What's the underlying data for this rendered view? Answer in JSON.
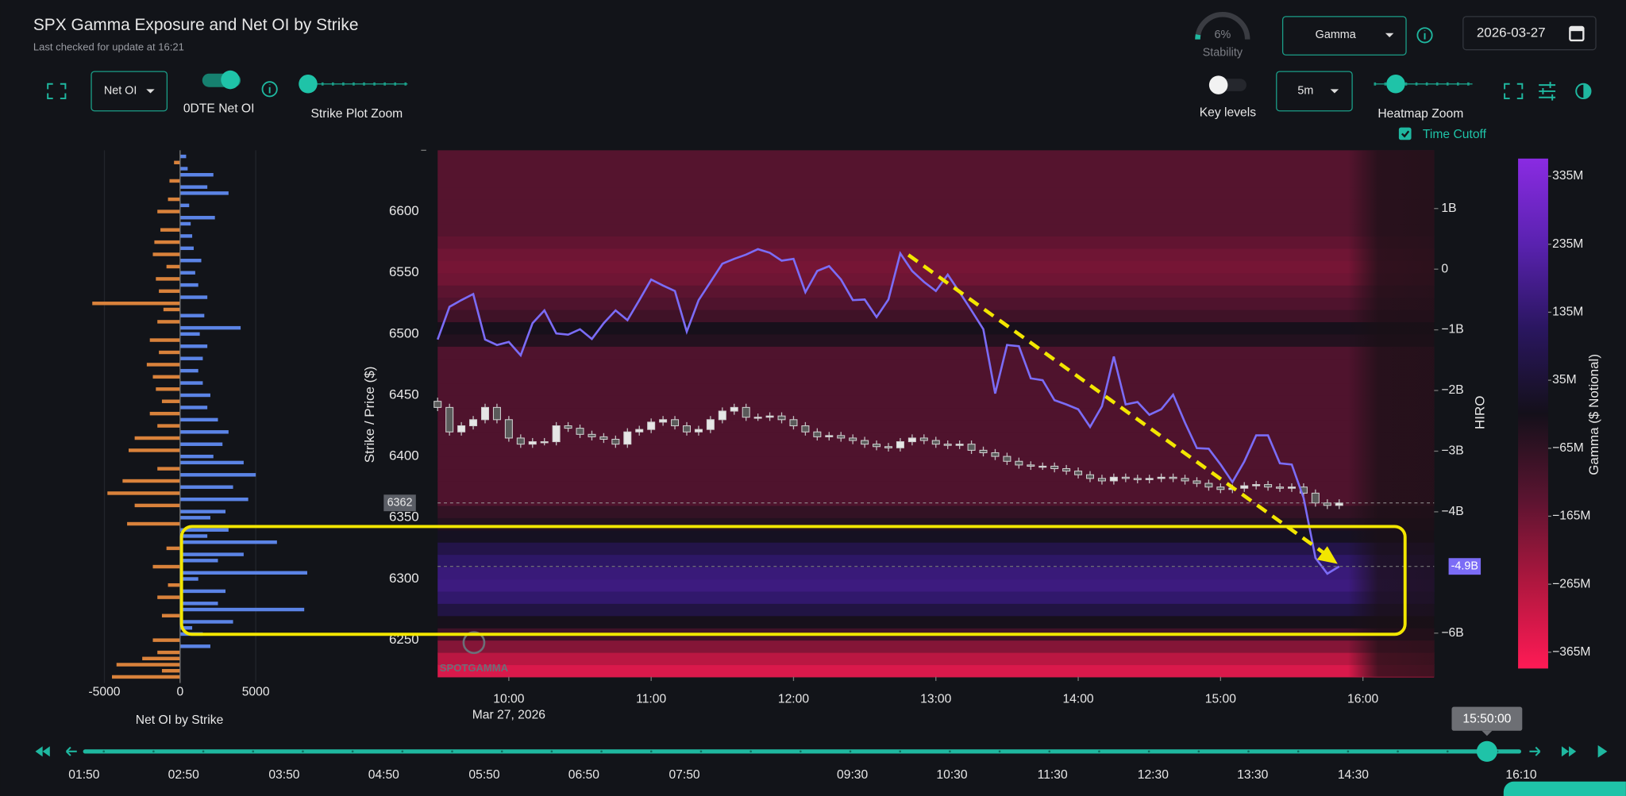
{
  "header": {
    "title": "SPX Gamma Exposure and Net OI by Strike",
    "subtitle": "Last checked for update at 16:21"
  },
  "controls": {
    "net_oi_select": "Net OI",
    "dte_label": "0DTE Net OI",
    "strike_zoom_label": "Strike Plot Zoom",
    "stability": {
      "value": 6,
      "value_label": "6%",
      "label": "Stability"
    },
    "mode_select": "Gamma",
    "date": "2026-03-27",
    "key_levels_label": "Key levels",
    "interval_select": "5m",
    "heatmap_zoom_label": "Heatmap Zoom",
    "time_cutoff_label": "Time Cutoff"
  },
  "chart_data": [
    {
      "type": "bar",
      "orientation": "horizontal",
      "x_label": "Net OI by Strike",
      "strikes": [
        6220,
        6225,
        6230,
        6235,
        6240,
        6245,
        6250,
        6255,
        6260,
        6265,
        6270,
        6275,
        6280,
        6285,
        6290,
        6295,
        6300,
        6305,
        6310,
        6315,
        6320,
        6325,
        6330,
        6335,
        6340,
        6345,
        6350,
        6355,
        6360,
        6365,
        6370,
        6375,
        6380,
        6385,
        6390,
        6395,
        6400,
        6405,
        6410,
        6415,
        6420,
        6425,
        6430,
        6435,
        6440,
        6445,
        6450,
        6455,
        6460,
        6465,
        6470,
        6475,
        6480,
        6485,
        6490,
        6495,
        6500,
        6505,
        6510,
        6515,
        6520,
        6525,
        6530,
        6535,
        6540,
        6545,
        6550,
        6555,
        6560,
        6565,
        6570,
        6575,
        6580,
        6585,
        6590,
        6595,
        6600,
        6605,
        6610,
        6615,
        6620,
        6625,
        6630,
        6635,
        6640,
        6645
      ],
      "values": [
        -4500,
        -1200,
        -4200,
        -2500,
        -1500,
        2000,
        -1800,
        1500,
        800,
        3500,
        -1200,
        8200,
        2500,
        -1500,
        3000,
        -800,
        1200,
        8400,
        -1800,
        2500,
        4200,
        -900,
        6400,
        1800,
        3200,
        -3500,
        2000,
        3000,
        -3000,
        4500,
        -4800,
        3500,
        -3800,
        5000,
        -1500,
        4200,
        2200,
        -3400,
        2800,
        -3000,
        3200,
        -1500,
        2500,
        -2000,
        1800,
        -1200,
        2000,
        -1600,
        1500,
        -1800,
        1200,
        -2200,
        1500,
        -1400,
        1800,
        -2000,
        1300,
        4000,
        -1500,
        1600,
        -1100,
        -5800,
        1800,
        -1400,
        1200,
        -1600,
        1000,
        -900,
        1400,
        -1800,
        900,
        -1700,
        800,
        -1300,
        700,
        2300,
        -1500,
        600,
        -800,
        3200,
        1800,
        -700,
        2200,
        500,
        -400,
        400
      ],
      "colors": {
        "positive": "#5b84e6",
        "negative": "#d9823b"
      },
      "xlim": [
        -6000,
        9000
      ],
      "xticks": [
        -5000,
        0,
        5000
      ],
      "ylim": [
        6215,
        6650
      ]
    },
    {
      "type": "candlestick",
      "y_label": "Strike / Price ($)",
      "y2_label": "HIRO",
      "date_label": "Mar 27, 2026",
      "watermark": "SPOTGAMMA",
      "x": [
        570,
        575,
        580,
        585,
        590,
        595,
        600,
        605,
        610,
        615,
        620,
        625,
        630,
        635,
        640,
        645,
        650,
        655,
        660,
        665,
        670,
        675,
        680,
        685,
        690,
        695,
        700,
        705,
        710,
        715,
        720,
        725,
        730,
        735,
        740,
        745,
        750,
        755,
        760,
        765,
        770,
        775,
        780,
        785,
        790,
        795,
        800,
        805,
        810,
        815,
        820,
        825,
        830,
        835,
        840,
        845,
        850,
        855,
        860,
        865,
        870,
        875,
        880,
        885,
        890,
        895,
        900,
        905,
        910,
        915,
        920,
        925,
        930,
        935,
        940,
        945,
        950
      ],
      "open": [
        6445,
        6440,
        6420,
        6425,
        6430,
        6440,
        6430,
        6415,
        6410,
        6412,
        6412,
        6425,
        6423,
        6418,
        6416,
        6414,
        6410,
        6420,
        6422,
        6428,
        6430,
        6425,
        6420,
        6422,
        6430,
        6437,
        6440,
        6432,
        6432,
        6433,
        6430,
        6425,
        6420,
        6416,
        6417,
        6415,
        6413,
        6410,
        6408,
        6407,
        6412,
        6415,
        6413,
        6410,
        6409,
        6410,
        6405,
        6403,
        6400,
        6396,
        6393,
        6392,
        6392,
        6390,
        6388,
        6385,
        6382,
        6380,
        6383,
        6382,
        6381,
        6382,
        6383,
        6382,
        6380,
        6378,
        6375,
        6373,
        6374,
        6376,
        6377,
        6375,
        6374,
        6375,
        6370,
        6362,
        6360
      ],
      "high": [
        6448,
        6443,
        6428,
        6433,
        6443,
        6443,
        6433,
        6418,
        6415,
        6415,
        6428,
        6428,
        6426,
        6421,
        6419,
        6417,
        6423,
        6425,
        6431,
        6433,
        6433,
        6428,
        6425,
        6433,
        6440,
        6443,
        6443,
        6435,
        6436,
        6436,
        6433,
        6428,
        6423,
        6420,
        6420,
        6418,
        6416,
        6413,
        6411,
        6415,
        6418,
        6418,
        6416,
        6413,
        6413,
        6413,
        6408,
        6406,
        6403,
        6399,
        6396,
        6395,
        6395,
        6393,
        6391,
        6388,
        6385,
        6386,
        6386,
        6385,
        6385,
        6386,
        6386,
        6385,
        6383,
        6381,
        6378,
        6377,
        6379,
        6380,
        6380,
        6378,
        6378,
        6378,
        6373,
        6365,
        6365
      ],
      "low": [
        6437,
        6417,
        6417,
        6422,
        6427,
        6427,
        6412,
        6407,
        6407,
        6409,
        6409,
        6420,
        6415,
        6413,
        6411,
        6407,
        6407,
        6417,
        6419,
        6425,
        6422,
        6417,
        6417,
        6419,
        6427,
        6434,
        6429,
        6429,
        6429,
        6427,
        6422,
        6417,
        6413,
        6413,
        6412,
        6410,
        6407,
        6405,
        6404,
        6404,
        6409,
        6410,
        6407,
        6406,
        6406,
        6402,
        6400,
        6397,
        6393,
        6390,
        6389,
        6389,
        6387,
        6385,
        6382,
        6379,
        6377,
        6377,
        6379,
        6378,
        6378,
        6379,
        6379,
        6377,
        6375,
        6372,
        6370,
        6370,
        6371,
        6373,
        6372,
        6371,
        6371,
        6367,
        6359,
        6357,
        6357
      ],
      "close": [
        6440,
        6420,
        6425,
        6430,
        6440,
        6430,
        6415,
        6410,
        6412,
        6412,
        6425,
        6423,
        6418,
        6416,
        6414,
        6410,
        6420,
        6422,
        6428,
        6430,
        6425,
        6420,
        6422,
        6430,
        6437,
        6440,
        6432,
        6432,
        6433,
        6430,
        6425,
        6420,
        6416,
        6417,
        6415,
        6413,
        6410,
        6408,
        6407,
        6412,
        6415,
        6413,
        6410,
        6409,
        6410,
        6405,
        6403,
        6400,
        6396,
        6393,
        6392,
        6392,
        6390,
        6388,
        6385,
        6382,
        6380,
        6383,
        6382,
        6381,
        6382,
        6383,
        6382,
        6380,
        6378,
        6375,
        6373,
        6374,
        6376,
        6377,
        6375,
        6374,
        6375,
        6370,
        6362,
        6360,
        6362
      ],
      "up_color": "#e6e6e6",
      "down_color": "#5a5a5a",
      "hiro": {
        "color": "#7b6cf6",
        "axis": "y2",
        "values": [
          -1.16,
          -0.62,
          -0.51,
          -0.41,
          -1.16,
          -1.25,
          -1.2,
          -1.42,
          -0.89,
          -0.68,
          -1.06,
          -1.08,
          -0.99,
          -1.15,
          -0.89,
          -0.68,
          -0.84,
          -0.51,
          -0.17,
          -0.27,
          -0.36,
          -1.03,
          -0.51,
          -0.21,
          0.09,
          0.17,
          0.24,
          0.33,
          0.27,
          0.14,
          0.17,
          -0.38,
          -0.03,
          0.05,
          -0.17,
          -0.51,
          -0.5,
          -0.79,
          -0.5,
          0.26,
          -0.03,
          -0.21,
          -0.36,
          -0.09,
          -0.38,
          -0.68,
          -0.99,
          -2.05,
          -1.25,
          -1.27,
          -1.8,
          -1.83,
          -2.16,
          -2.23,
          -2.31,
          -2.6,
          -2.26,
          -1.44,
          -2.23,
          -2.19,
          -2.4,
          -2.31,
          -2.07,
          -2.53,
          -2.95,
          -2.96,
          -3.22,
          -3.51,
          -3.17,
          -2.74,
          -2.74,
          -3.2,
          -3.22,
          -3.77,
          -4.76,
          -5.02,
          -4.9
        ]
      },
      "price_marker": 6362,
      "hiro_marker": {
        "value": -4.9,
        "label": "-4.9B"
      },
      "xlim": [
        570,
        990
      ],
      "xticks": [
        {
          "value": 600,
          "label": "10:00"
        },
        {
          "value": 660,
          "label": "11:00"
        },
        {
          "value": 720,
          "label": "12:00"
        },
        {
          "value": 780,
          "label": "13:00"
        },
        {
          "value": 840,
          "label": "14:00"
        },
        {
          "value": 900,
          "label": "15:00"
        },
        {
          "value": 960,
          "label": "16:00"
        }
      ],
      "ylim": [
        6220,
        6650
      ],
      "yticks": [
        6250,
        6300,
        6350,
        6400,
        6450,
        6500,
        6550,
        6600
      ],
      "y2lim": [
        -6.72,
        1.96
      ],
      "y2ticks": [
        {
          "value": 1,
          "label": "1B"
        },
        0,
        {
          "value": -1,
          "label": "−1B"
        },
        {
          "value": -2,
          "label": "−2B"
        },
        {
          "value": -3,
          "label": "−3B"
        },
        {
          "value": -4,
          "label": "−4B"
        },
        {
          "value": -6,
          "label": "−6B"
        }
      ],
      "heatmap": {
        "strikes": [
          6225,
          6235,
          6245,
          6255,
          6265,
          6275,
          6285,
          6295,
          6305,
          6315,
          6325,
          6335,
          6345,
          6355,
          6365,
          6375,
          6385,
          6395,
          6405,
          6415,
          6425,
          6435,
          6445,
          6455,
          6465,
          6475,
          6485,
          6495,
          6505,
          6515,
          6525,
          6535,
          6545,
          6555,
          6565,
          6575,
          6585,
          6595,
          6605,
          6615,
          6625,
          6635,
          6645
        ],
        "gamma": [
          -330,
          -280,
          -200,
          -90,
          -20,
          60,
          130,
          160,
          150,
          120,
          70,
          0,
          -40,
          -70,
          -120,
          -120,
          -120,
          -120,
          -120,
          -120,
          -120,
          -120,
          -120,
          -120,
          -120,
          -120,
          -120,
          -40,
          -20,
          -90,
          -120,
          -140,
          -170,
          -180,
          -170,
          -150,
          -130,
          -130,
          -130,
          -130,
          -130,
          -130,
          -130
        ],
        "colorscale": [
          "#ff1a55",
          "#b0173f",
          "#5a1430",
          "#14101a",
          "#2a1660",
          "#5a22b0",
          "#8a2be2"
        ],
        "clim": [
          -389,
          361
        ],
        "label": "Gamma ($ Notional)",
        "ticks": [
          {
            "value": 335,
            "label": "335M"
          },
          {
            "value": 235,
            "label": "235M"
          },
          {
            "value": 135,
            "label": "135M"
          },
          {
            "value": 35,
            "label": "35M"
          },
          {
            "value": -65,
            "label": "−65M"
          },
          {
            "value": -165,
            "label": "−165M"
          },
          {
            "value": -265,
            "label": "−265M"
          },
          {
            "value": -365,
            "label": "−365M"
          }
        ]
      }
    }
  ],
  "timeline": {
    "current": "15:50:00",
    "labels": [
      "01:50",
      "02:50",
      "03:50",
      "04:50",
      "05:50",
      "06:50",
      "07:50",
      "09:30",
      "10:30",
      "11:30",
      "12:30",
      "13:30",
      "14:30",
      "16:10"
    ]
  }
}
